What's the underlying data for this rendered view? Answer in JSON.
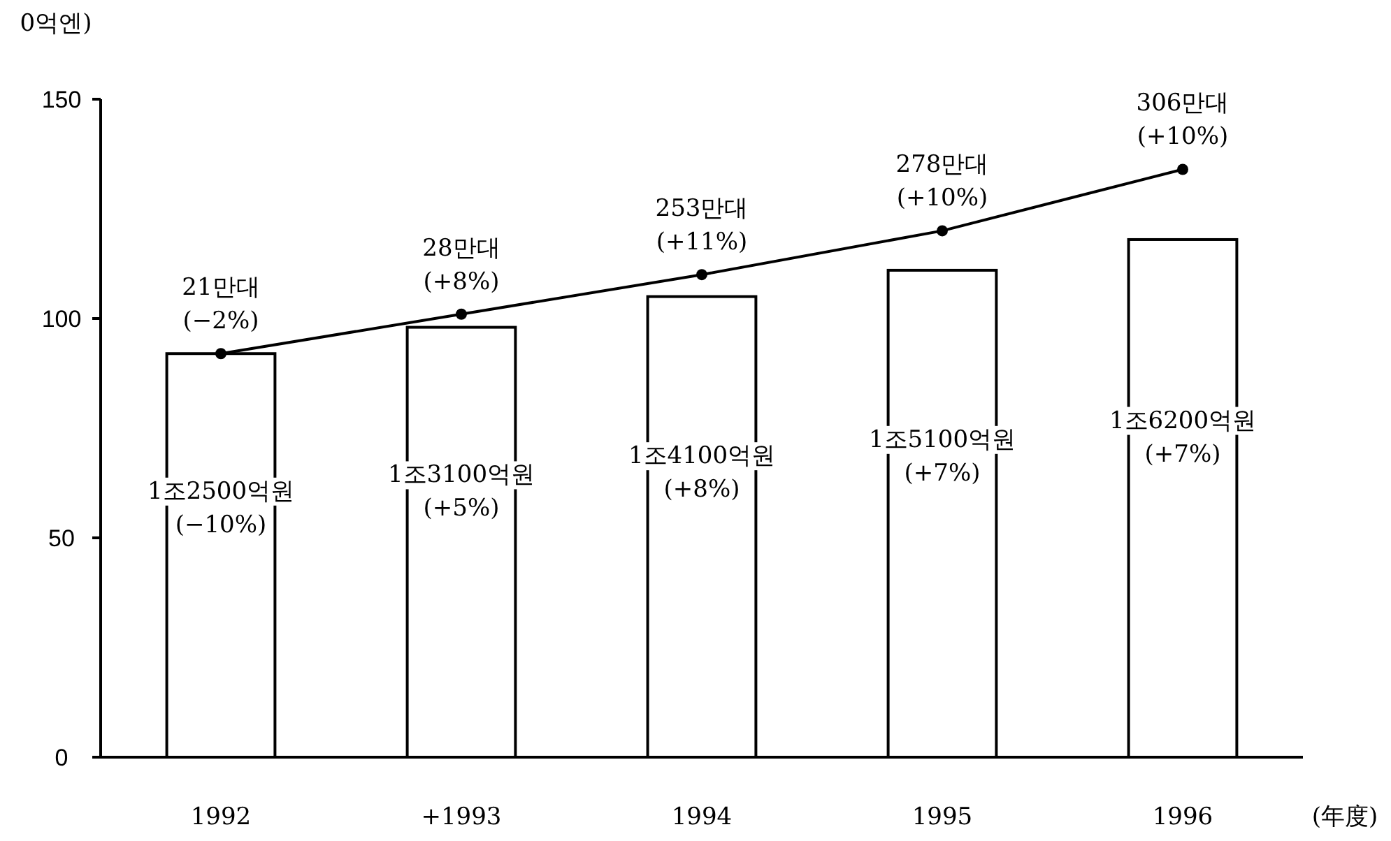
{
  "chart_data": {
    "type": "bar",
    "ylabel": "0억엔)",
    "xlabel": "(年度)",
    "categories": [
      "1992",
      "+1993",
      "1994",
      "1995",
      "1996"
    ],
    "series": [
      {
        "color": "#ffffff",
        "values": [
          92,
          98,
          105,
          111,
          118
        ]
      },
      {
        "type": "line",
        "color": "#000000",
        "marker": "circle",
        "values": [
          92,
          101,
          110,
          120,
          134
        ]
      }
    ],
    "annotations": [
      "1조2500억원\n(−10%)",
      "1조3100억원\n(+5%)",
      "1조4100억원\n(+8%)",
      "1조5100억원\n(+7%)",
      "1조6200억원\n(+7%)",
      {
        "text": "21만대\n(−2%)",
        "x": "1992",
        "y": 92
      },
      {
        "text": "28만대\n(+8%)",
        "x": "+1993",
        "y": 101
      },
      {
        "text": "253만대\n(+11%)",
        "x": "1994",
        "y": 110
      },
      {
        "text": "278만대\n(+10%)",
        "x": "1995",
        "y": 120
      },
      {
        "text": "306만대\n(+10%)",
        "x": "1996",
        "y": 134
      }
    ],
    "ylim": [
      0,
      150
    ],
    "yticks": [
      0,
      50,
      100,
      150
    ],
    "grid": false
  }
}
